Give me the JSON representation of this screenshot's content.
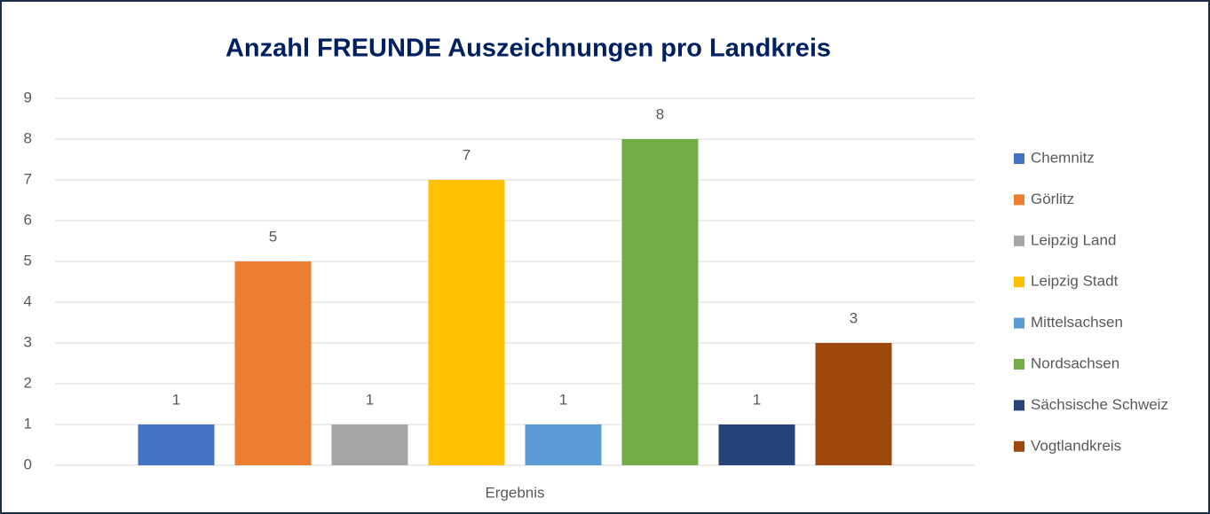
{
  "chart_data": {
    "type": "bar",
    "title": "Anzahl FREUNDE Auszeichnungen pro Landkreis",
    "categories": [
      "Ergebnis"
    ],
    "series": [
      {
        "name": "Chemnitz",
        "color": "#4472c4",
        "values": [
          1
        ]
      },
      {
        "name": "Görlitz",
        "color": "#ed7d31",
        "values": [
          5
        ]
      },
      {
        "name": "Leipzig Land",
        "color": "#a5a5a5",
        "values": [
          1
        ]
      },
      {
        "name": "Leipzig Stadt",
        "color": "#ffc000",
        "values": [
          7
        ]
      },
      {
        "name": "Mittelsachsen",
        "color": "#5b9bd5",
        "values": [
          1
        ]
      },
      {
        "name": "Nordsachsen",
        "color": "#70ad47",
        "values": [
          8
        ]
      },
      {
        "name": "Sächsische Schweiz",
        "color": "#264478",
        "values": [
          1
        ]
      },
      {
        "name": "Vogtlandkreis",
        "color": "#9e480e",
        "values": [
          3
        ]
      }
    ],
    "ylim": [
      0,
      9
    ],
    "yticks": [
      0,
      1,
      2,
      3,
      4,
      5,
      6,
      7,
      8,
      9
    ],
    "grid": true,
    "legend": "right"
  }
}
